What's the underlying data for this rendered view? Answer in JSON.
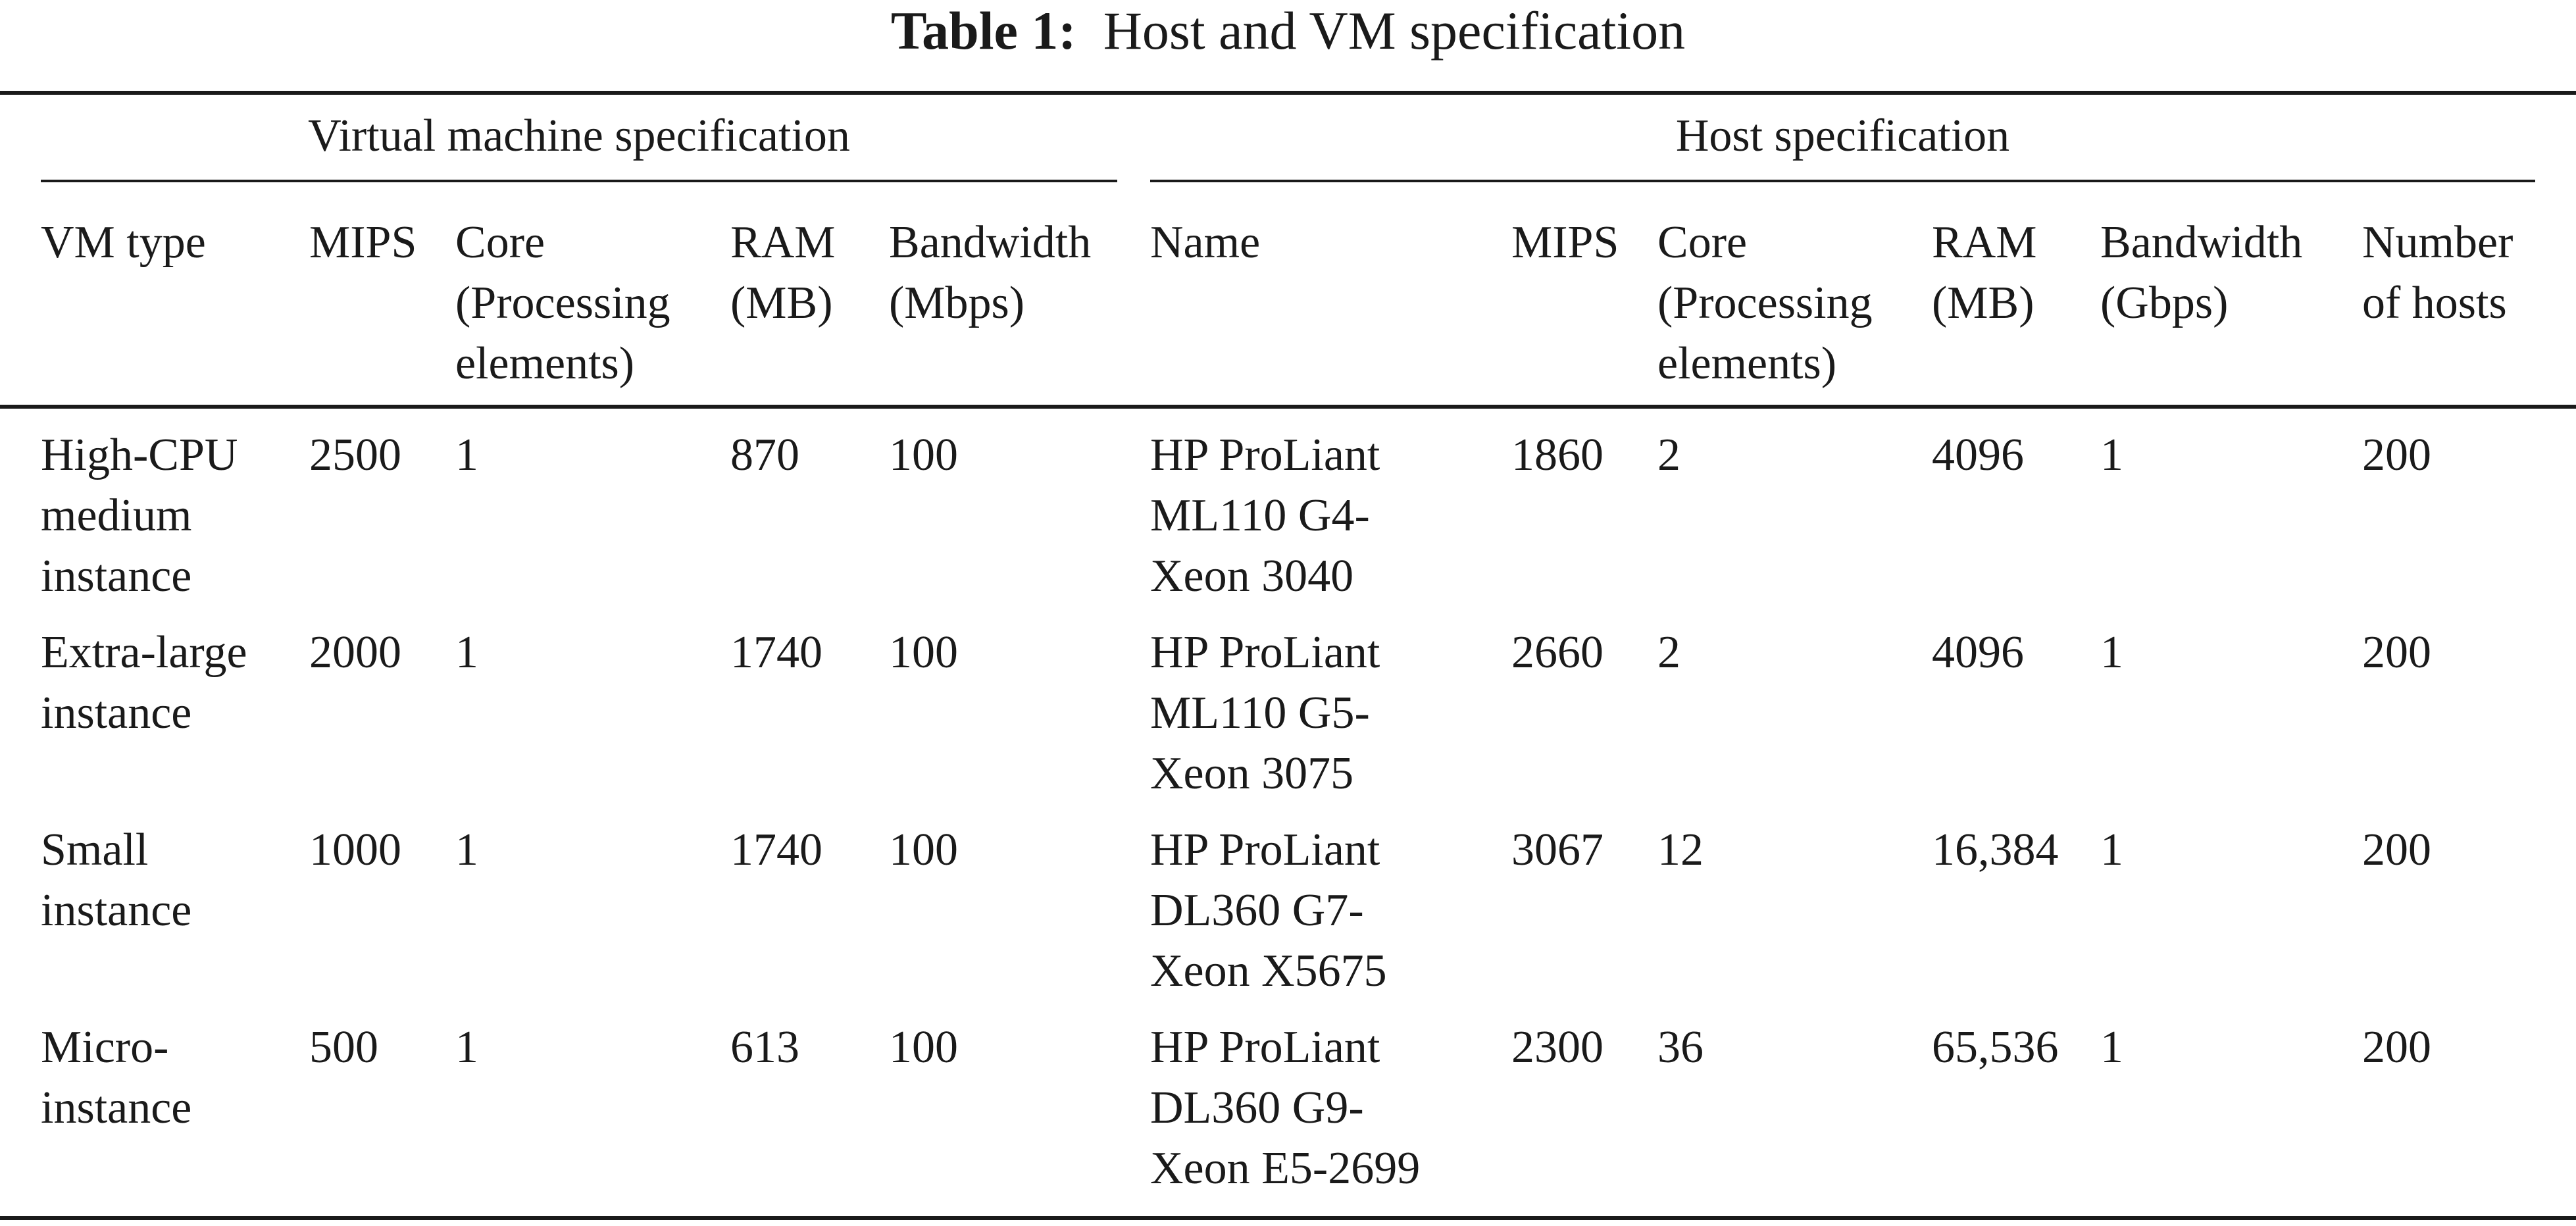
{
  "caption": {
    "label": "Table 1:",
    "text": "Host and VM specification"
  },
  "groups": {
    "vm": "Virtual machine specification",
    "host": "Host specification"
  },
  "columns": [
    "VM type",
    "MIPS",
    "Core\n(Processing\nelements)",
    "RAM\n(MB)",
    "Bandwidth\n(Mbps)",
    "Name",
    "MIPS",
    "Core\n(Processing\nelements)",
    "RAM\n(MB)",
    "Bandwidth\n(Gbps)",
    "Number\nof hosts"
  ],
  "rows": [
    [
      "High-CPU\nmedium\ninstance",
      "2500",
      "1",
      "870",
      "100",
      "HP ProLiant\nML110 G4-\nXeon 3040",
      "1860",
      "2",
      "4096",
      "1",
      "200"
    ],
    [
      "Extra-large\ninstance",
      "2000",
      "1",
      "1740",
      "100",
      "HP ProLiant\nML110 G5-\nXeon 3075",
      "2660",
      "2",
      "4096",
      "1",
      "200"
    ],
    [
      "Small\ninstance",
      "1000",
      "1",
      "1740",
      "100",
      "HP ProLiant\nDL360 G7-\nXeon X5675",
      "3067",
      "12",
      "16,384",
      "1",
      "200"
    ],
    [
      "Micro-\ninstance",
      "500",
      "1",
      "613",
      "100",
      "HP ProLiant\nDL360 G9-\nXeon E5-2699",
      "2300",
      "36",
      "65,536",
      "1",
      "200"
    ]
  ]
}
